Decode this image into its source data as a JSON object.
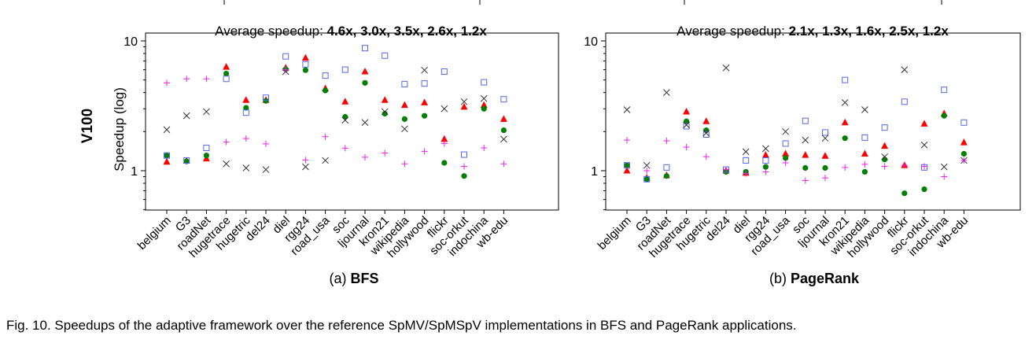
{
  "figure": {
    "row_label": "V100",
    "caption": "Fig. 10. Speedups of the adaptive framework over the reference SpMV/SpMSpV implementations in BFS and PageRank applications."
  },
  "chart_data": [
    {
      "type": "scatter",
      "subtitle_prefix": "(a) ",
      "subtitle_bold": "BFS",
      "header_label": "Average speedup:",
      "header_values": "4.6x, 3.0x, 3.5x, 2.6x, 1.2x",
      "ylabel": "Speedup (log)",
      "yscale": "log",
      "ylim": [
        0.5,
        10
      ],
      "yticks": [
        "10",
        "1"
      ],
      "categories": [
        "belgium",
        "G3",
        "roadNet",
        "hugetrace",
        "hugetric",
        "del24",
        "diel",
        "rgg24",
        "road_usa",
        "soc",
        "ljournal",
        "kron21",
        "wikipedia",
        "hollywood",
        "flickr",
        "soc-orkut",
        "indochina",
        "wb-edu"
      ],
      "series": [
        {
          "marker": "triangle",
          "color": "#ff0000",
          "values": [
            1.17,
            1.19,
            1.24,
            6.3,
            3.5,
            3.5,
            6.2,
            7.4,
            4.3,
            3.4,
            5.8,
            3.5,
            3.2,
            3.35,
            1.75,
            3.1,
            3.2,
            2.5
          ]
        },
        {
          "marker": "circle",
          "color": "#008000",
          "values": [
            1.31,
            1.18,
            1.31,
            5.6,
            3.05,
            3.45,
            6.05,
            5.95,
            4.15,
            2.6,
            4.75,
            2.75,
            2.5,
            2.65,
            1.15,
            0.91,
            3.0,
            2.05
          ]
        },
        {
          "marker": "square",
          "color": "#5566ee",
          "values": [
            1.31,
            1.2,
            1.5,
            5.1,
            2.8,
            3.65,
            7.6,
            6.6,
            5.4,
            6.0,
            8.8,
            7.7,
            4.65,
            4.7,
            5.8,
            1.33,
            4.8,
            3.55
          ]
        },
        {
          "marker": "x",
          "color": "#333333",
          "values": [
            2.07,
            2.65,
            2.85,
            1.13,
            1.05,
            1.02,
            5.8,
            1.07,
            1.2,
            2.45,
            2.35,
            2.85,
            2.1,
            5.95,
            3.0,
            3.4,
            3.6,
            1.75
          ]
        },
        {
          "marker": "plus",
          "color": "#ee22ee",
          "values": [
            4.75,
            5.1,
            5.1,
            1.66,
            1.77,
            1.61,
            6.0,
            1.21,
            1.83,
            1.49,
            1.27,
            1.37,
            1.13,
            1.41,
            1.62,
            1.08,
            1.5,
            1.13
          ]
        }
      ]
    },
    {
      "type": "scatter",
      "subtitle_prefix": "(b) ",
      "subtitle_bold": "PageRank",
      "header_label": "Average speedup:",
      "header_values": "2.1x, 1.3x, 1.6x, 2.5x, 1.2x",
      "ylabel": "",
      "yscale": "log",
      "ylim": [
        0.5,
        10
      ],
      "yticks": [
        "10",
        "1"
      ],
      "categories": [
        "belgium",
        "G3",
        "roadNet",
        "hugetrace",
        "hugetric",
        "del24",
        "diel",
        "rgg24",
        "road_usa",
        "soc",
        "ljournal",
        "kron21",
        "wikipedia",
        "hollywood",
        "flickr",
        "soc-orkut",
        "indochina",
        "wb-edu"
      ],
      "series": [
        {
          "marker": "triangle",
          "color": "#ff0000",
          "values": [
            1.0,
            0.88,
            0.92,
            2.85,
            2.4,
            1.0,
            0.96,
            1.32,
            1.35,
            1.32,
            1.3,
            2.35,
            1.35,
            1.55,
            1.1,
            2.3,
            2.75,
            1.65
          ]
        },
        {
          "marker": "circle",
          "color": "#008000",
          "values": [
            1.1,
            0.86,
            0.91,
            2.4,
            2.05,
            0.98,
            0.98,
            1.07,
            1.25,
            1.05,
            1.05,
            1.78,
            0.98,
            1.22,
            0.67,
            0.72,
            2.65,
            1.35
          ]
        },
        {
          "marker": "square",
          "color": "#5566ee",
          "values": [
            1.1,
            0.86,
            1.06,
            2.2,
            1.9,
            1.02,
            1.2,
            1.2,
            1.62,
            2.42,
            1.97,
            5.0,
            1.8,
            2.15,
            3.4,
            1.06,
            4.2,
            2.35
          ]
        },
        {
          "marker": "x",
          "color": "#333333",
          "values": [
            2.95,
            1.1,
            4.0,
            2.25,
            1.95,
            6.2,
            1.4,
            1.48,
            2.0,
            1.72,
            1.78,
            3.35,
            2.95,
            1.28,
            6.0,
            1.58,
            1.07,
            1.2
          ]
        },
        {
          "marker": "plus",
          "color": "#ee22ee",
          "values": [
            1.72,
            1.0,
            1.7,
            1.52,
            1.28,
            1.02,
            0.95,
            0.98,
            1.15,
            0.84,
            0.88,
            1.06,
            1.12,
            1.08,
            1.1,
            1.08,
            0.9,
            1.2
          ]
        }
      ]
    }
  ]
}
